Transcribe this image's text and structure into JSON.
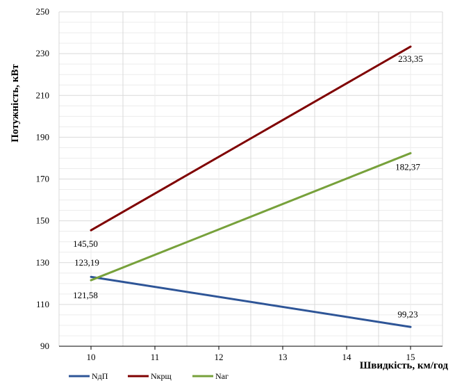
{
  "chart_data": {
    "type": "line",
    "xlabel": "Швидкість, км/год",
    "ylabel": "Потужність, кВт",
    "x": [
      10,
      11,
      12,
      13,
      14,
      15
    ],
    "xlim": [
      9.5,
      15.5
    ],
    "ylim": [
      90,
      250
    ],
    "yticks": [
      90,
      110,
      130,
      150,
      170,
      190,
      210,
      230,
      250
    ],
    "grid": true,
    "legend_position": "bottom-left",
    "series": [
      {
        "name": "NдП",
        "color": "#2e5597",
        "x": [
          10,
          15
        ],
        "values": [
          123.19,
          99.23
        ],
        "labels": [
          "123,19",
          "99,23"
        ]
      },
      {
        "name": "Nкрщ",
        "color": "#7f0000",
        "x": [
          10,
          15
        ],
        "values": [
          145.5,
          233.35
        ],
        "labels": [
          "145,50",
          "233,35"
        ]
      },
      {
        "name": "Nаг",
        "color": "#77a13b",
        "x": [
          10,
          15
        ],
        "values": [
          121.58,
          182.37
        ],
        "labels": [
          "121,58",
          "182,37"
        ]
      }
    ]
  }
}
